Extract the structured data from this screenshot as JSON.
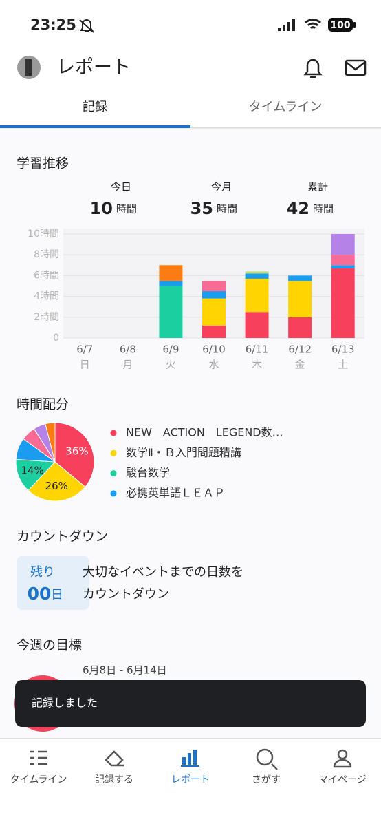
{
  "status_bar": {
    "time": "23:25",
    "battery": "100"
  },
  "header": {
    "title": "レポート"
  },
  "tabs": [
    "記録",
    "タイムライン"
  ],
  "trend": {
    "title": "学習推移",
    "stats": [
      {
        "label": "今日",
        "value": 10,
        "unit": "時間"
      },
      {
        "label": "今月",
        "value": 35,
        "unit": "時間"
      },
      {
        "label": "累計",
        "value": 42,
        "unit": "時間"
      }
    ]
  },
  "chart_data": [
    {
      "type": "stacked-bar",
      "categories": [
        "6/7",
        "6/8",
        "6/9",
        "6/10",
        "6/11",
        "6/12",
        "6/13"
      ],
      "weekdays": [
        "日",
        "月",
        "火",
        "水",
        "木",
        "金",
        "土"
      ],
      "series": [
        {
          "color": "#f7405c",
          "values": [
            0,
            0,
            0,
            1.2,
            2.5,
            2,
            6.7
          ]
        },
        {
          "color": "#ffd400",
          "values": [
            0,
            0,
            0,
            2.6,
            3.2,
            3.5,
            0
          ]
        },
        {
          "color": "#1ccfa0",
          "values": [
            0,
            0,
            5,
            0,
            0,
            0,
            0
          ]
        },
        {
          "color": "#1a9cf0",
          "values": [
            0,
            0,
            0.5,
            0.7,
            0.5,
            0.5,
            0.3
          ]
        },
        {
          "color": "#f76b95",
          "values": [
            0,
            0,
            0,
            1,
            0,
            0,
            1
          ]
        },
        {
          "color": "#fa7c12",
          "values": [
            0,
            0,
            1.5,
            0,
            0,
            0,
            0
          ]
        },
        {
          "color": "#b7e07a",
          "values": [
            0,
            0,
            0,
            0,
            0.2,
            0,
            0
          ]
        },
        {
          "color": "#b583e8",
          "values": [
            0,
            0,
            0,
            0,
            0,
            0,
            2
          ]
        }
      ],
      "ylim": [
        0,
        10
      ],
      "yticks": [
        0,
        {
          "value": 2,
          "label": "2時間"
        },
        {
          "value": 4,
          "label": "4時間"
        },
        {
          "value": 6,
          "label": "6時間"
        },
        {
          "value": 8,
          "label": "8時間"
        },
        {
          "value": 10,
          "label": "10時間"
        }
      ],
      "grid": true
    },
    {
      "type": "pie",
      "title": "時間配分",
      "values": [
        36,
        26,
        14,
        9,
        6,
        5,
        4
      ],
      "value_labels": [
        "36%",
        "26%",
        "14%",
        null,
        null,
        null,
        null
      ],
      "colors": [
        "#f7405c",
        "#ffd400",
        "#1ccfa0",
        "#1a9cf0",
        "#f76b95",
        "#b583e8",
        "#fa7c12"
      ],
      "legend": [
        "NEW　ACTION　LEGEND数…",
        "数学Ⅱ・Ｂ入門問題精講",
        "駿台数学",
        "必携英単語ＬＥＡＰ"
      ]
    }
  ],
  "countdown": {
    "title": "カウントダウン",
    "remaining": "残り",
    "days": "00",
    "unit": "日",
    "text": [
      "大切なイベントまでの日数を",
      "カウントダウン"
    ]
  },
  "weekly_goal": {
    "title": "今週の目標",
    "range": "6月8日 - 6月14日"
  },
  "toast": "記録しました",
  "nav": [
    "タイムライン",
    "記録する",
    "レポート",
    "さがす",
    "マイページ"
  ]
}
